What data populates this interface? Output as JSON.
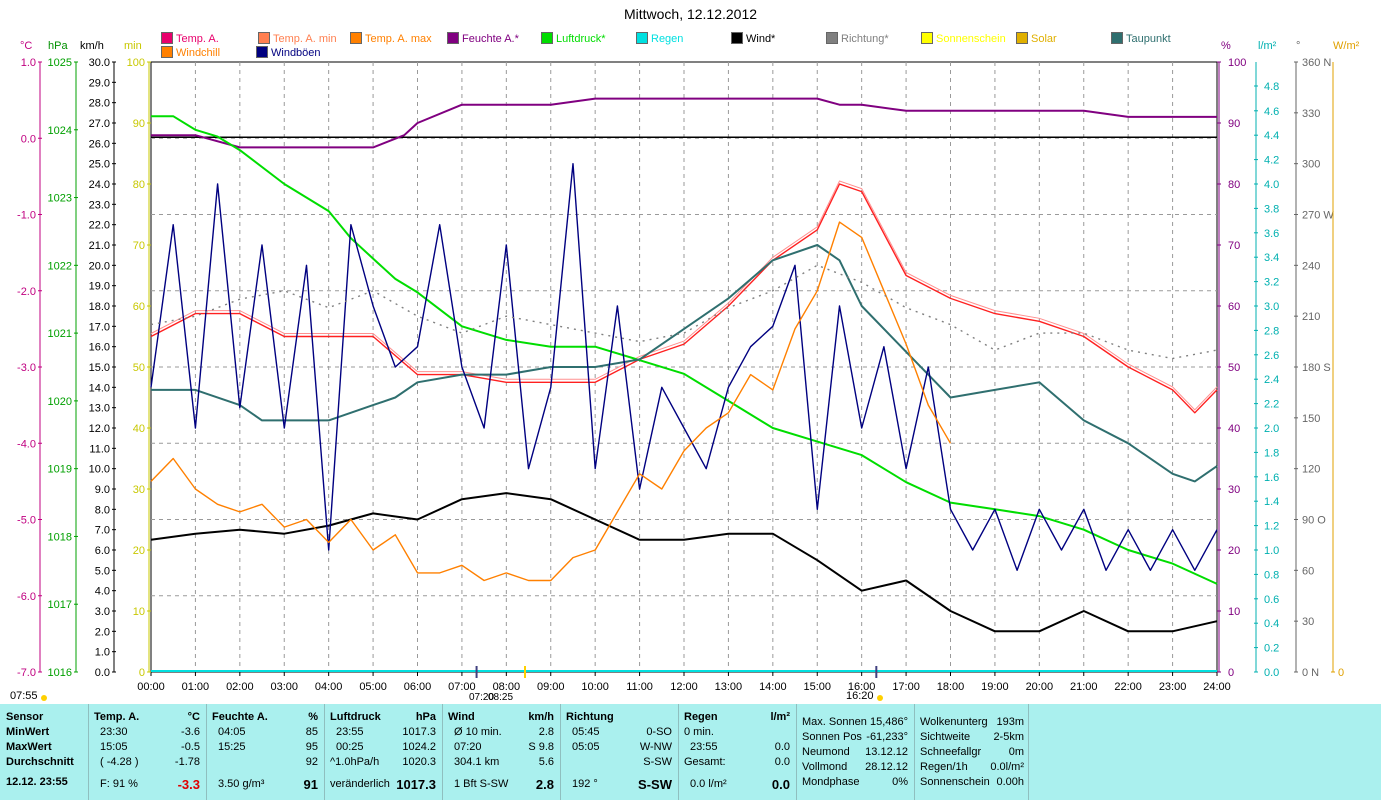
{
  "title": "Mittwoch, 12.12.2012",
  "legend": [
    {
      "label": "Temp. A.",
      "color": "#e8006c"
    },
    {
      "label": "Temp. A. min",
      "color": "#ff7f50"
    },
    {
      "label": "Temp. A. max",
      "color": "#ff8000"
    },
    {
      "label": "Feuchte A.*",
      "color": "#800080"
    },
    {
      "label": "Luftdruck*",
      "color": "#00dd00"
    },
    {
      "label": "Regen",
      "color": "#00e0e0"
    },
    {
      "label": "Wind*",
      "color": "#000000"
    },
    {
      "label": "Richtung*",
      "color": "#808080"
    },
    {
      "label": "Sonnenschein",
      "color": "#ffff00"
    },
    {
      "label": "Solar",
      "color": "#e0b000"
    },
    {
      "label": "Taupunkt",
      "color": "#2f6f6f"
    },
    {
      "label": "Windchill",
      "color": "#ff8000"
    },
    {
      "label": "Windböen",
      "color": "#000080"
    }
  ],
  "axis_units": {
    "temp": "°C",
    "pressure": "hPa",
    "wind": "km/h",
    "sun": "min",
    "humidity": "%",
    "rain": "l/m²",
    "dir": "°",
    "solar": "W/m²"
  },
  "axes": {
    "temp": [
      "1.0",
      "0.0",
      "-1.0",
      "-2.0",
      "-3.0",
      "-4.0",
      "-5.0",
      "-6.0",
      "-7.0"
    ],
    "pressure": [
      "1025",
      "1024",
      "1023",
      "1022",
      "1021",
      "1020",
      "1019",
      "1018",
      "1017",
      "1016"
    ],
    "wind": [
      "30.0",
      "29.0",
      "28.0",
      "27.0",
      "26.0",
      "25.0",
      "24.0",
      "23.0",
      "22.0",
      "21.0",
      "20.0",
      "19.0",
      "18.0",
      "17.0",
      "16.0",
      "15.0",
      "14.0",
      "13.0",
      "12.0",
      "11.0",
      "10.0",
      "9.0",
      "8.0",
      "7.0",
      "6.0",
      "5.0",
      "4.0",
      "3.0",
      "2.0",
      "1.0",
      "0.0"
    ],
    "sun": [
      "100",
      "90",
      "80",
      "70",
      "60",
      "50",
      "40",
      "30",
      "20",
      "10",
      "0"
    ],
    "humidity": [
      "100",
      "90",
      "80",
      "70",
      "60",
      "50",
      "40",
      "30",
      "20",
      "10",
      "0"
    ],
    "rain": [
      "4.8",
      "4.6",
      "4.4",
      "4.2",
      "4.0",
      "3.8",
      "3.6",
      "3.4",
      "3.2",
      "3.0",
      "2.8",
      "2.6",
      "2.4",
      "2.2",
      "2.0",
      "1.8",
      "1.6",
      "1.4",
      "1.2",
      "1.0",
      "0.8",
      "0.6",
      "0.4",
      "0.2",
      "0.0"
    ],
    "dir": [
      "360 N",
      "330",
      "300",
      "270 W",
      "240",
      "210",
      "180 S",
      "150",
      "120",
      "90 O",
      "60",
      "30",
      "0 N"
    ],
    "solar": [
      "0"
    ]
  },
  "day_markers": {
    "sunrise": "07:55",
    "sunset": "16:20",
    "noon_a": "08:25",
    "noon_b": "16:20",
    "moon": "07:20"
  },
  "chart_data": {
    "type": "line",
    "x_ticks": [
      "00:00",
      "01:00",
      "02:00",
      "03:00",
      "04:00",
      "05:00",
      "06:00",
      "07:00",
      "08:00",
      "09:00",
      "10:00",
      "11:00",
      "12:00",
      "13:00",
      "14:00",
      "15:00",
      "16:00",
      "17:00",
      "18:00",
      "19:00",
      "20:00",
      "21:00",
      "22:00",
      "23:00",
      "24:00"
    ],
    "series": [
      {
        "name": "Temp. A.",
        "color": "#ff2020",
        "unit": "°C",
        "hours": [
          0,
          1,
          2,
          3,
          4,
          5,
          6,
          7,
          8,
          9,
          10,
          11,
          12,
          13,
          14,
          15,
          15.5,
          16,
          17,
          18,
          19,
          20,
          21,
          22,
          23,
          23.5,
          24
        ],
        "values": [
          -2.6,
          -2.3,
          -2.3,
          -2.6,
          -2.6,
          -2.6,
          -3.1,
          -3.1,
          -3.2,
          -3.2,
          -3.2,
          -2.9,
          -2.7,
          -2.2,
          -1.6,
          -1.2,
          -0.6,
          -0.7,
          -1.8,
          -2.1,
          -2.3,
          -2.4,
          -2.6,
          -3.0,
          -3.3,
          -3.6,
          -3.3
        ]
      },
      {
        "name": "Feuchte A.*",
        "color": "#800080",
        "unit": "%",
        "hours": [
          0,
          1,
          2,
          3,
          4,
          5,
          5.7,
          6,
          7,
          8,
          9,
          10,
          11,
          12,
          13,
          14,
          15,
          15.5,
          16,
          17,
          18,
          19,
          20,
          21,
          22,
          23,
          24
        ],
        "values": [
          88,
          88,
          86,
          86,
          86,
          86,
          88,
          90,
          93,
          93,
          93,
          94,
          94,
          94,
          94,
          94,
          94,
          93,
          93,
          92,
          92,
          92,
          92,
          92,
          91,
          91,
          91
        ]
      },
      {
        "name": "Luftdruck*",
        "color": "#00dd00",
        "unit": "hPa",
        "hours": [
          0,
          0.5,
          1,
          1.5,
          2,
          3,
          4,
          4.5,
          5,
          5.5,
          6,
          7,
          8,
          9,
          10,
          11,
          12,
          13,
          14,
          15,
          16,
          17,
          18,
          19,
          20,
          21,
          22,
          23,
          24
        ],
        "values": [
          1024.2,
          1024.2,
          1024.0,
          1023.9,
          1023.7,
          1023.2,
          1022.8,
          1022.4,
          1022.1,
          1021.8,
          1021.6,
          1021.1,
          1020.9,
          1020.8,
          1020.8,
          1020.6,
          1020.4,
          1020.0,
          1019.6,
          1019.4,
          1019.2,
          1018.8,
          1018.5,
          1018.4,
          1018.3,
          1018.1,
          1017.8,
          1017.6,
          1017.3
        ]
      },
      {
        "name": "Taupunkt",
        "color": "#2f6f6f",
        "unit": "°C",
        "hours": [
          0,
          0.5,
          1,
          2,
          2.5,
          3,
          4,
          5,
          5.5,
          6,
          7,
          8,
          9,
          10,
          11,
          12,
          13,
          14,
          15,
          15.5,
          16,
          17,
          18,
          19,
          20,
          21,
          22,
          23,
          23.5,
          24
        ],
        "values": [
          -3.3,
          -3.3,
          -3.3,
          -3.5,
          -3.7,
          -3.7,
          -3.7,
          -3.5,
          -3.4,
          -3.2,
          -3.1,
          -3.1,
          -3.0,
          -3.0,
          -2.9,
          -2.5,
          -2.1,
          -1.6,
          -1.4,
          -1.6,
          -2.2,
          -2.8,
          -3.4,
          -3.3,
          -3.2,
          -3.7,
          -4.0,
          -4.4,
          -4.5,
          -4.3
        ]
      },
      {
        "name": "Wind*",
        "color": "#000000",
        "unit": "km/h",
        "hours": [
          0,
          1,
          2,
          3,
          4,
          5,
          6,
          7,
          8,
          9,
          10,
          11,
          12,
          13,
          14,
          15,
          16,
          17,
          18,
          19,
          20,
          21,
          22,
          23,
          24
        ],
        "values": [
          6.5,
          6.8,
          7.0,
          6.8,
          7.2,
          7.8,
          7.5,
          8.5,
          8.8,
          8.5,
          7.5,
          6.5,
          6.5,
          6.8,
          6.8,
          5.5,
          4.0,
          4.5,
          3.0,
          2.0,
          2.0,
          3.0,
          2.0,
          2.0,
          2.5
        ]
      },
      {
        "name": "Windböen",
        "color": "#000080",
        "unit": "km/h",
        "hours": [
          0,
          0.5,
          1,
          1.5,
          2,
          2.5,
          3,
          3.5,
          4,
          4.5,
          5,
          5.5,
          6,
          6.5,
          7,
          7.5,
          8,
          8.5,
          9,
          9.5,
          10,
          10.5,
          11,
          11.5,
          12,
          12.5,
          13,
          13.5,
          14,
          14.5,
          15,
          15.5,
          16,
          16.5,
          17,
          17.5,
          18,
          18.5,
          19,
          19.5,
          20,
          20.5,
          21,
          21.5,
          22,
          22.5,
          23,
          23.5,
          24
        ],
        "values": [
          14,
          22,
          12,
          24,
          13,
          21,
          12,
          20,
          6,
          22,
          18,
          15,
          16,
          22,
          15,
          12,
          21,
          10,
          14,
          25,
          10,
          18,
          9,
          14,
          12,
          10,
          14,
          16,
          17,
          20,
          8,
          18,
          12,
          16,
          10,
          15,
          8,
          6,
          8,
          5,
          8,
          6,
          8,
          5,
          7,
          5,
          7,
          5,
          7
        ]
      },
      {
        "name": "Windchill",
        "color": "#ff8000",
        "unit": "°C",
        "hours": [
          0,
          0.5,
          1,
          1.5,
          2,
          2.5,
          3,
          3.5,
          4,
          4.5,
          5,
          5.5,
          6,
          6.5,
          7,
          7.5,
          8,
          8.5,
          9,
          9.5,
          10,
          10.5,
          11,
          11.5,
          12,
          12.5,
          13,
          13.5,
          14,
          14.5,
          15,
          15.5,
          16,
          16.5,
          17,
          17.5,
          18
        ],
        "values": [
          -4.5,
          -4.2,
          -4.6,
          -4.8,
          -4.9,
          -4.8,
          -5.1,
          -5.0,
          -5.3,
          -5.0,
          -5.4,
          -5.2,
          -5.7,
          -5.7,
          -5.6,
          -5.8,
          -5.7,
          -5.8,
          -5.8,
          -5.5,
          -5.4,
          -4.9,
          -4.4,
          -4.6,
          -4.1,
          -3.8,
          -3.6,
          -3.1,
          -3.3,
          -2.5,
          -2.0,
          -1.1,
          -1.3,
          -2.0,
          -2.7,
          -3.5,
          -4.0
        ]
      },
      {
        "name": "Richtung*",
        "color": "#808080",
        "unit": "°",
        "hours": [
          0,
          1,
          2,
          3,
          4,
          5,
          6,
          7,
          8,
          9,
          10,
          11,
          12,
          13,
          14,
          15,
          16,
          17,
          18,
          19,
          20,
          21,
          22,
          23,
          24
        ],
        "values": [
          205,
          210,
          220,
          225,
          215,
          225,
          210,
          200,
          210,
          205,
          200,
          195,
          200,
          215,
          225,
          240,
          230,
          215,
          205,
          190,
          200,
          200,
          190,
          185,
          190
        ]
      }
    ],
    "xlabel": "",
    "ylabel": ""
  },
  "stats": {
    "sensor": {
      "head": "Sensor",
      "rows": [
        "MinWert",
        "MaxWert",
        "Durchschnitt"
      ],
      "date": "12.12. 23:55"
    },
    "temp": {
      "head": "Temp. A.",
      "unit": "°C",
      "rows": [
        [
          "23:30",
          "-3.6"
        ],
        [
          "15:05",
          "-0.5"
        ],
        [
          "( -4.28 )",
          "-1.78"
        ]
      ],
      "last_label": "F: 91 %",
      "last_value": "-3.3"
    },
    "hum": {
      "head": "Feuchte A.",
      "unit": "%",
      "rows": [
        [
          "04:05",
          "85"
        ],
        [
          "15:25",
          "95"
        ],
        [
          "",
          "92"
        ]
      ],
      "last_label": "3.50 g/m³",
      "last_value": "91"
    },
    "press": {
      "head": "Luftdruck",
      "unit": "hPa",
      "rows": [
        [
          "23:55",
          "1017.3"
        ],
        [
          "00:25",
          "1024.2"
        ],
        [
          "^1.0hPa/h",
          "1020.3"
        ]
      ],
      "last_label": "veränderlich",
      "last_value": "1017.3"
    },
    "wind": {
      "head": "Wind",
      "unit": "km/h",
      "rows": [
        [
          "Ø 10 min.",
          "2.8"
        ],
        [
          "07:20",
          "S 9.8"
        ],
        [
          "304.1 km",
          "5.6"
        ]
      ],
      "last_label": "1 Bft S-SW",
      "last_value": "2.8"
    },
    "dir": {
      "head": "Richtung",
      "rows": [
        [
          "05:45",
          "0-SO"
        ],
        [
          "05:05",
          "W-NW"
        ],
        [
          "",
          "S-SW"
        ]
      ],
      "last_label": "192 °",
      "last_value": "S-SW"
    },
    "rain": {
      "head": "Regen",
      "unit": "l/m²",
      "rows": [
        [
          "0 min.",
          ""
        ],
        [
          "23:55",
          "0.0"
        ],
        [
          "Gesamt:",
          "0.0"
        ]
      ],
      "last_label": "0.0 l/m²",
      "last_value": "0.0"
    },
    "astro": [
      [
        "Max. Sonnen",
        "15,486°"
      ],
      [
        "Sonnen Pos",
        "-61,233°"
      ],
      [
        "Neumond",
        "13.12.12"
      ],
      [
        "Vollmond",
        "28.12.12"
      ],
      [
        "Mondphase",
        "0%"
      ]
    ],
    "misc": [
      [
        "Wolkenunterg",
        "193m"
      ],
      [
        "Sichtweite",
        "2-5km"
      ],
      [
        "Schneefallgr",
        "0m"
      ],
      [
        "Regen/1h",
        "0.0l/m²"
      ],
      [
        "Sonnenschein",
        "0.00h"
      ]
    ]
  }
}
